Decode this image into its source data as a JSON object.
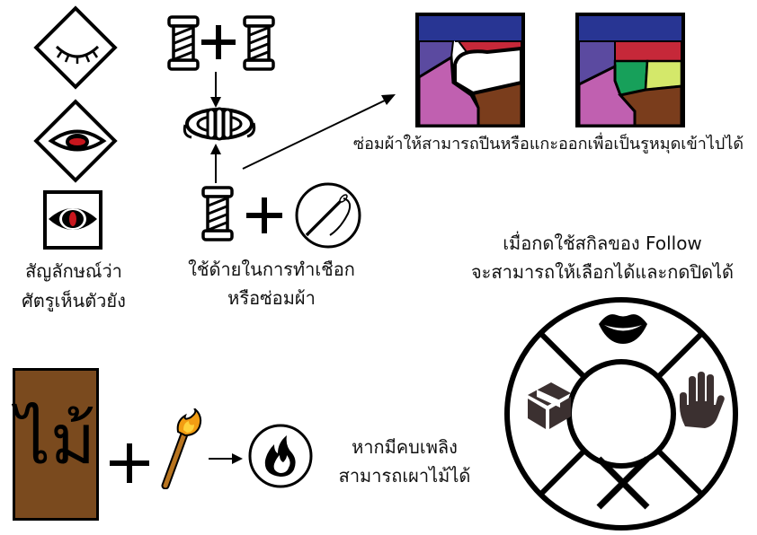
{
  "enemy_watch": {
    "caption_line1": "สัญลักษณ์ว่า",
    "caption_line2": "ศัตรูเห็นตัวยัง",
    "states": [
      "eye-closed-icon",
      "eye-half-icon",
      "eye-open-icon"
    ]
  },
  "thread": {
    "caption_line1": "ใช้ด้ายในการทำเชือก",
    "caption_line2": "หรือซ่อมผ้า"
  },
  "cloth": {
    "caption": "ซ่อมผ้าให้สามารถปีนหรือแกะออกเพื่อเป็นรูหมุดเข้าไปได้"
  },
  "follow": {
    "caption_line1": "เมื่อกดใช้สกิลของ Follow",
    "caption_line2": "จะสามารถให้เลือกได้และกดปิดได้",
    "options": [
      "mouth-icon",
      "hand-icon",
      "box-icon",
      "cancel-x-icon"
    ]
  },
  "wood": {
    "label": "ไม้",
    "caption_line1": "หากมีคบเพลิง",
    "caption_line2": "สามารถเผาไม้ได้"
  },
  "colors": {
    "wood_brown": "#7a4a1e",
    "cloth_blue": "#283593",
    "cloth_red": "#c62839",
    "cloth_purple": "#5b4aa0",
    "cloth_pink": "#c060b0",
    "cloth_brown": "#7a3d1c",
    "cloth_green": "#17a05a",
    "cloth_lime": "#d4e86a",
    "eye_red": "#c8161d"
  }
}
